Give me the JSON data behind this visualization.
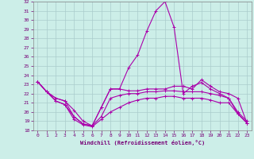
{
  "xlabel": "Windchill (Refroidissement éolien,°C)",
  "bg_color": "#cceee8",
  "grid_color": "#aacccc",
  "line_color": "#aa00aa",
  "xlim": [
    -0.5,
    23.5
  ],
  "ylim": [
    18,
    32
  ],
  "yticks": [
    18,
    19,
    20,
    21,
    22,
    23,
    24,
    25,
    26,
    27,
    28,
    29,
    30,
    31,
    32
  ],
  "xticks": [
    0,
    1,
    2,
    3,
    4,
    5,
    6,
    7,
    8,
    9,
    10,
    11,
    12,
    13,
    14,
    15,
    16,
    17,
    18,
    19,
    20,
    21,
    22,
    23
  ],
  "series": [
    [
      23.3,
      22.2,
      21.2,
      20.8,
      19.2,
      18.6,
      18.4,
      19.2,
      20.0,
      20.5,
      21.0,
      21.3,
      21.5,
      21.5,
      21.7,
      21.7,
      21.5,
      21.5,
      21.5,
      21.3,
      21.0,
      21.0,
      19.8,
      18.8
    ],
    [
      23.3,
      22.2,
      21.2,
      20.8,
      19.5,
      18.7,
      18.5,
      19.5,
      21.5,
      21.8,
      22.0,
      22.0,
      22.2,
      22.2,
      22.3,
      22.3,
      22.2,
      22.2,
      22.2,
      22.0,
      21.8,
      21.5,
      20.0,
      19.0
    ],
    [
      23.3,
      22.2,
      21.5,
      21.2,
      20.2,
      19.0,
      18.5,
      20.5,
      22.5,
      22.5,
      22.3,
      22.3,
      22.5,
      22.5,
      22.5,
      22.8,
      22.8,
      22.5,
      23.5,
      22.8,
      22.2,
      22.0,
      21.5,
      18.8
    ],
    [
      23.3,
      22.2,
      21.5,
      21.2,
      19.5,
      18.7,
      18.5,
      20.5,
      22.5,
      22.5,
      24.8,
      26.2,
      28.8,
      31.0,
      32.0,
      29.2,
      22.0,
      22.8,
      23.2,
      22.5,
      22.0,
      21.5,
      19.8,
      18.8
    ]
  ]
}
